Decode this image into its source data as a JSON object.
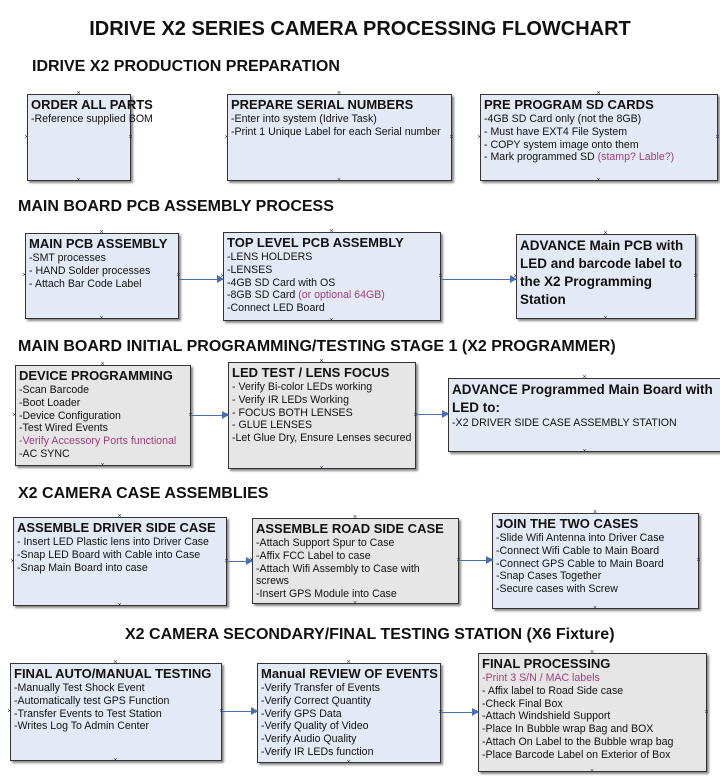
{
  "title": "IDRIVE X2  SERIES CAMERA PROCESSING FLOWCHART",
  "sections": [
    {
      "heading": "IDRIVE X2 PRODUCTION PREPARATION",
      "boxes": [
        {
          "title": "ORDER ALL PARTS",
          "fill": "blue",
          "lines": [
            {
              "t": " -Reference supplied BOM"
            }
          ]
        },
        {
          "title": "PREPARE SERIAL NUMBERS",
          "fill": "blue",
          "lines": [
            {
              "t": "-Enter into system (Idrive Task)"
            },
            {
              "t": "-Print 1 Unique Label for each Serial number"
            }
          ]
        },
        {
          "title": "PRE PROGRAM SD CARDS",
          "fill": "blue",
          "lines": [
            {
              "t": "-4GB SD Card only (not the 8GB)"
            },
            {
              "t": "- Must have EXT4 File System"
            },
            {
              "t": "- COPY system image onto them"
            },
            {
              "t": "- Mark programmed SD ",
              "p": "(stamp? Lable?)"
            }
          ]
        }
      ]
    },
    {
      "heading": "MAIN BOARD PCB ASSEMBLY PROCESS",
      "boxes": [
        {
          "title": "MAIN PCB ASSEMBLY",
          "fill": "blue",
          "lines": [
            {
              "t": " -SMT processes"
            },
            {
              "t": "- HAND Solder processes"
            },
            {
              "t": "- Attach Bar Code Label"
            }
          ]
        },
        {
          "title": "TOP LEVEL PCB ASSEMBLY",
          "fill": "blue",
          "lines": [
            {
              "t": "-LENS HOLDERS"
            },
            {
              "t": "-LENSES"
            },
            {
              "t": "-4GB SD Card with OS"
            },
            {
              "t": "-8GB SD Card ",
              "p": "(or optional 64GB)"
            },
            {
              "t": "-Connect  LED Board"
            }
          ]
        },
        {
          "title": "ADVANCE Main PCB with LED and barcode label to the X2 Programming Station",
          "fill": "blue",
          "lines": []
        }
      ]
    },
    {
      "heading": "MAIN BOARD INITIAL PROGRAMMING/TESTING STAGE 1 (X2 PROGRAMMER)",
      "boxes": [
        {
          "title": "DEVICE PROGRAMMING",
          "fill": "gray",
          "lines": [
            {
              "t": "-Scan Barcode"
            },
            {
              "t": "-Boot Loader"
            },
            {
              "t": "-Device Configuration"
            },
            {
              "t": "-Test Wired Events"
            },
            {
              "t": "",
              "p": "-Verify Accessory Ports functional"
            },
            {
              "t": "-AC SYNC"
            }
          ]
        },
        {
          "title": "LED TEST / LENS FOCUS",
          "fill": "gray",
          "lines": [
            {
              "t": "- Verify Bi-color LEDs working"
            },
            {
              "t": "- Verify IR LEDs Working"
            },
            {
              "t": "- FOCUS BOTH LENSES"
            },
            {
              "t": "- GLUE LENSES"
            },
            {
              "t": "-Let Glue Dry, Ensure Lenses secured"
            }
          ]
        },
        {
          "title": "ADVANCE Programmed Main Board with LED to:",
          "fill": "blue",
          "lines": [
            {
              "t": "-X2 DRIVER  SIDE  CASE  ASSEMBLY STATION"
            }
          ]
        }
      ]
    },
    {
      "heading": "X2 CAMERA CASE ASSEMBLIES",
      "boxes": [
        {
          "title": "ASSEMBLE DRIVER SIDE CASE",
          "fill": "blue",
          "lines": [
            {
              "t": "- Insert LED Plastic lens into Driver Case"
            },
            {
              "t": "-Snap LED Board with Cable into Case"
            },
            {
              "t": "-Snap Main Board into case"
            }
          ]
        },
        {
          "title": "ASSEMBLE ROAD SIDE CASE",
          "fill": "gray",
          "lines": [
            {
              "t": "-Attach Support Spur to Case"
            },
            {
              "t": "-Affix FCC Label to case"
            },
            {
              "t": "-Attach Wifi Assembly to Case with"
            },
            {
              "t": "screws"
            },
            {
              "t": "-Insert GPS Module into Case"
            }
          ]
        },
        {
          "title": "JOIN THE TWO CASES",
          "fill": "blue",
          "lines": [
            {
              "t": "-Slide Wifi Antenna into Driver Case"
            },
            {
              "t": "-Connect Wifi Cable to Main Board"
            },
            {
              "t": "-Connect GPS Cable to Main Board"
            },
            {
              "t": "-Snap Cases Together"
            },
            {
              "t": "-Secure cases with Screw"
            }
          ]
        }
      ]
    },
    {
      "heading": "X2 CAMERA SECONDARY/FINAL TESTING STATION (X6 Fixture)",
      "boxes": [
        {
          "title": "FINAL AUTO/MANUAL TESTING",
          "fill": "blue",
          "lines": [
            {
              "t": "-Manually Test Shock Event"
            },
            {
              "t": "-Automatically test GPS Function"
            },
            {
              "t": "-Transfer Events to Test Station"
            },
            {
              "t": "-Writes Log To Admin Center"
            }
          ]
        },
        {
          "title": "Manual REVIEW OF EVENTS",
          "fill": "blue",
          "lines": [
            {
              "t": "-Verify Transfer of Events"
            },
            {
              "t": "-Verify Correct Quantity"
            },
            {
              "t": "-Verify GPS Data"
            },
            {
              "t": "-Verify Quality of Video"
            },
            {
              "t": "-Verify Audio Quality"
            },
            {
              "t": "-Verify IR LEDs function"
            }
          ]
        },
        {
          "title": "FINAL PROCESSING",
          "fill": "gray",
          "lines": [
            {
              "t": "",
              "p": " -Print 3 S/N / MAC labels"
            },
            {
              "t": "- Affix label to Road Side case"
            },
            {
              "t": "-Check Final Box"
            },
            {
              "t": "-Attach Windshield Support"
            },
            {
              "t": "-Place In Bubble wrap Bag and BOX"
            },
            {
              "t": "-Attach On Label to the Bubble wrap bag"
            },
            {
              "t": "-Place Barcode Label on Exterior of Box"
            }
          ]
        }
      ]
    }
  ],
  "colors": {
    "box_blue": "#e4eaf5",
    "box_gray": "#e6e6e6",
    "note": "#a0407a",
    "arrow": "#4a6fb0"
  }
}
